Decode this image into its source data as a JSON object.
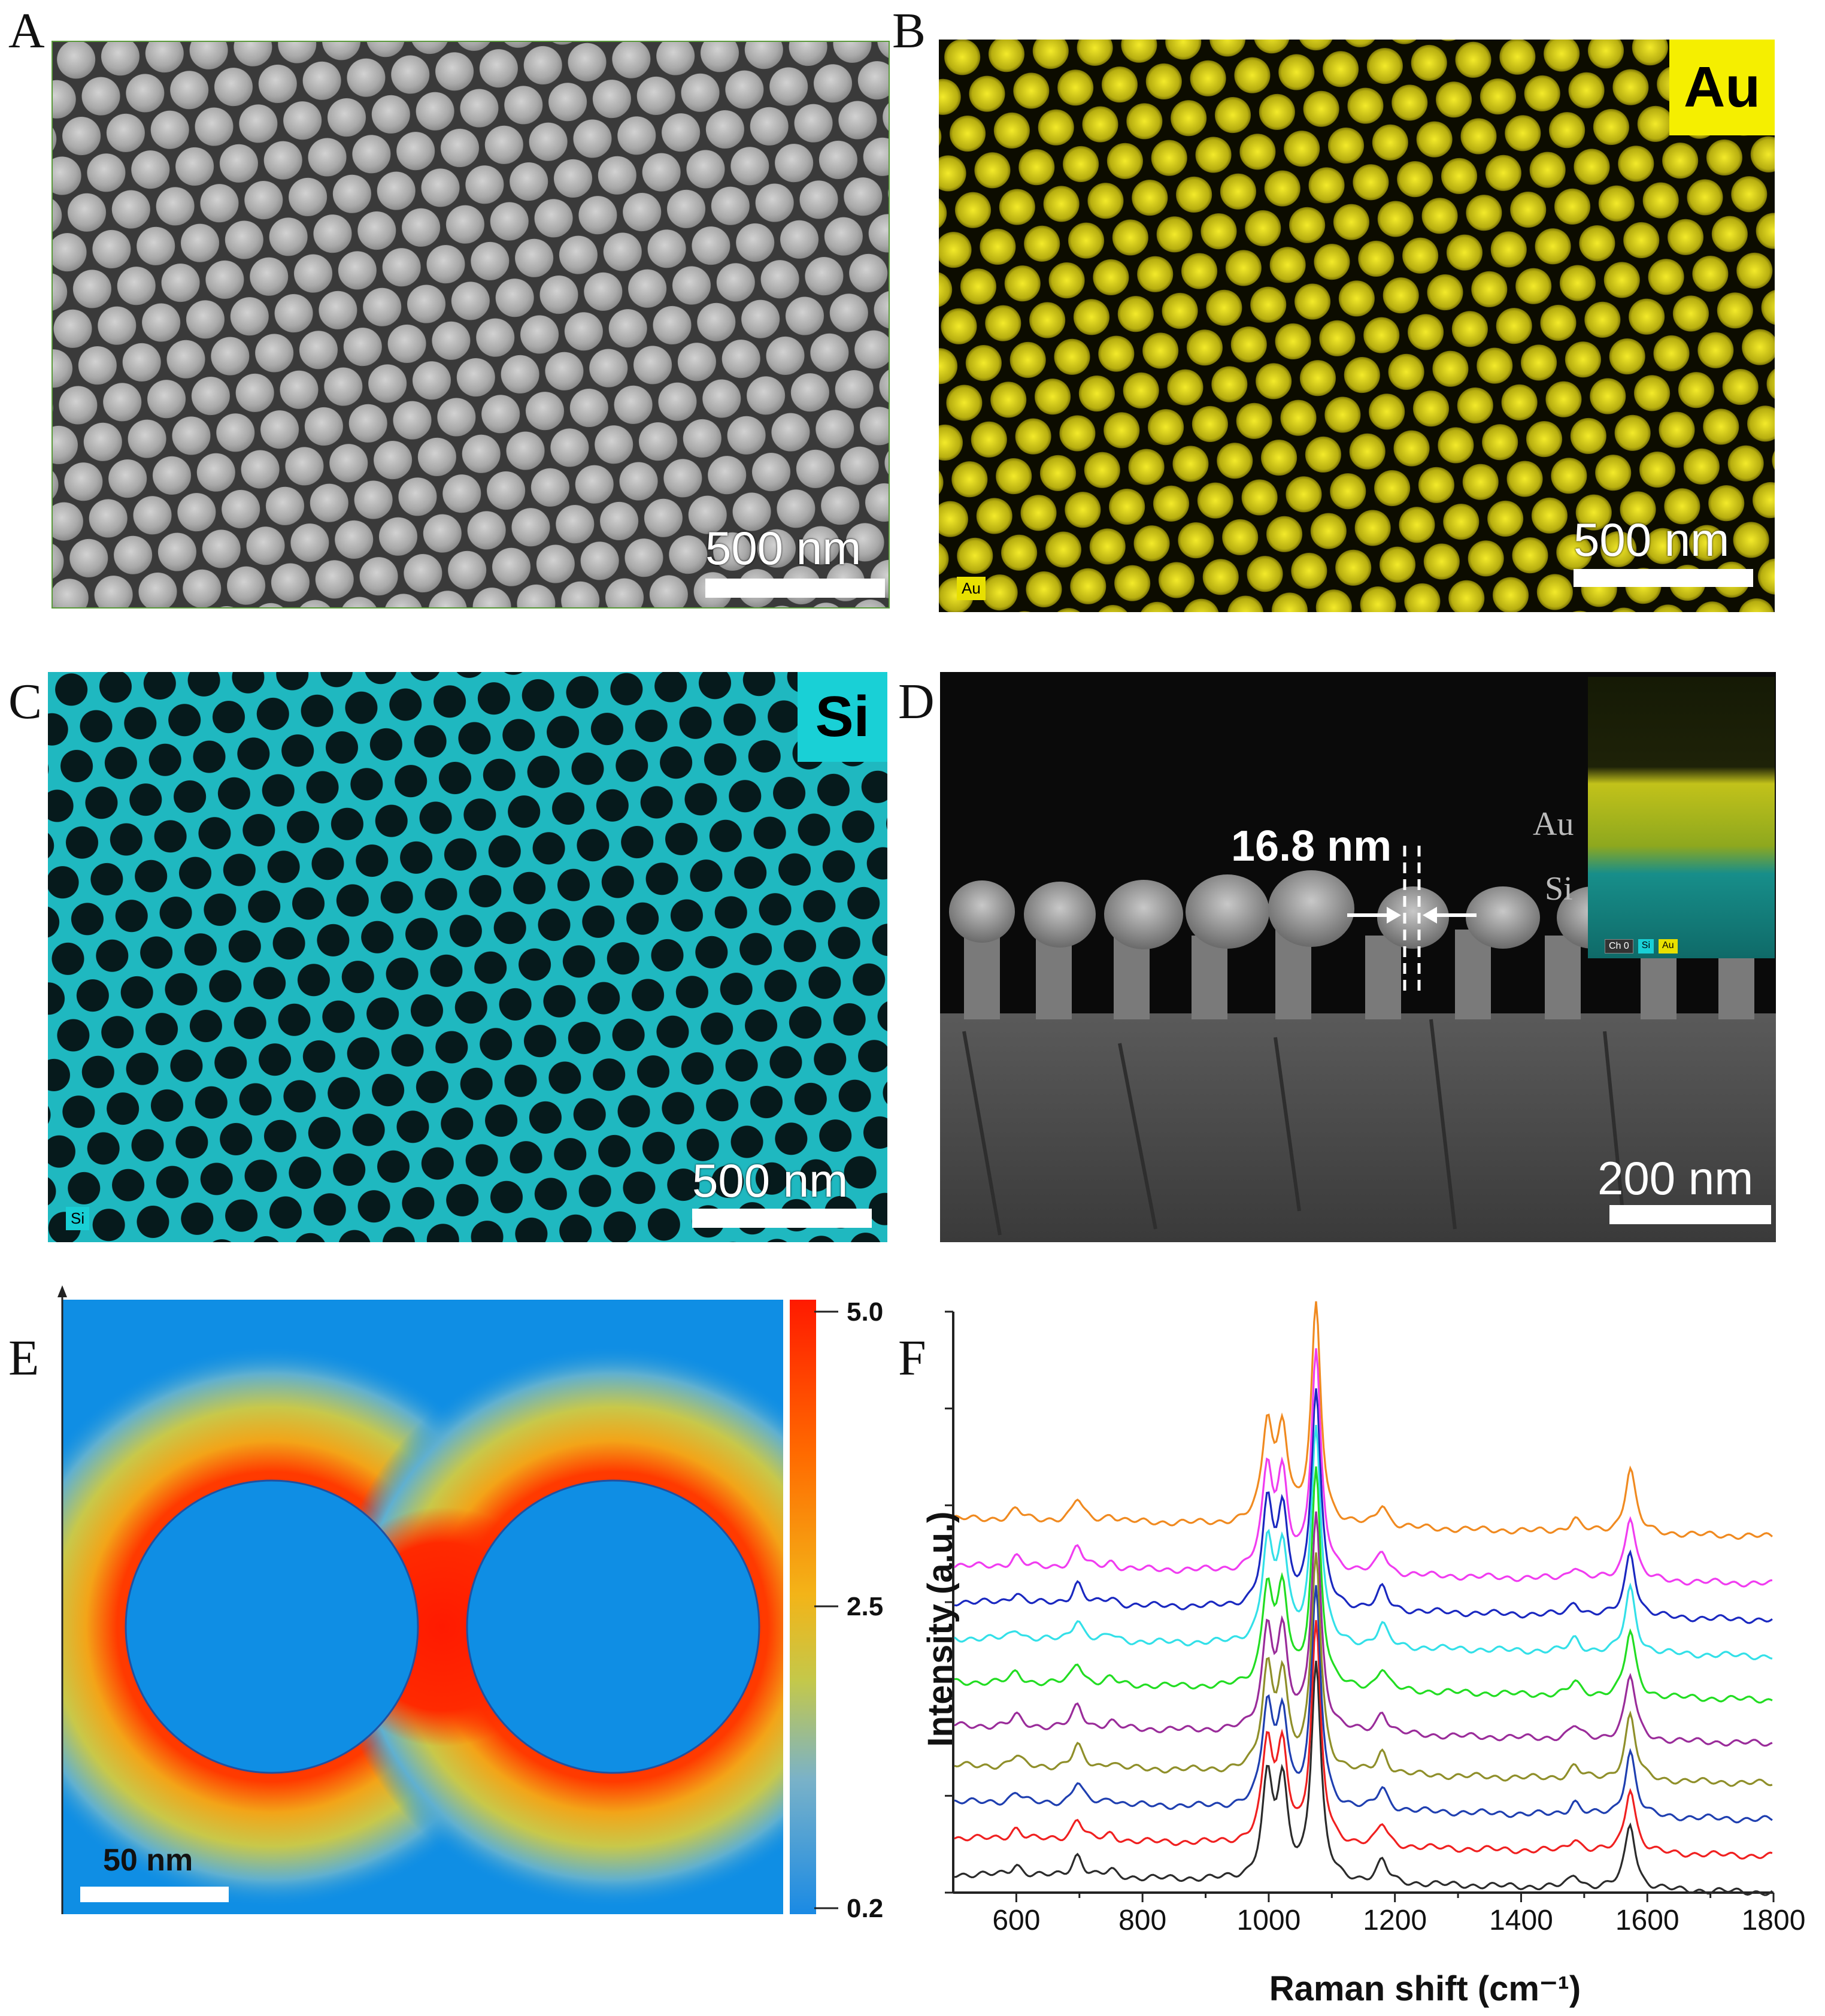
{
  "panels": {
    "A": {
      "letter": "A",
      "scale_label": "500 nm"
    },
    "B": {
      "letter": "B",
      "scale_label": "500 nm",
      "element_badge": "Au",
      "corner_tag": "Au",
      "color": "#e8e000"
    },
    "C": {
      "letter": "C",
      "scale_label": "500 nm",
      "element_badge": "Si",
      "corner_tag": "Si",
      "color": "#19d0d6"
    },
    "D": {
      "letter": "D",
      "scale_label": "200 nm",
      "gap_label": "16.8 nm",
      "inset_labels": {
        "top": "Au",
        "bottom": "Si"
      },
      "inset_legend": [
        "Ch 0",
        "Si",
        "Au"
      ]
    },
    "E": {
      "letter": "E",
      "scale_label": "50 nm",
      "colorbar_ticks": [
        "5.0",
        "2.5",
        "0.2"
      ]
    },
    "F": {
      "letter": "F"
    }
  },
  "chart_data": {
    "type": "line",
    "xlabel": "Raman shift (cm⁻¹)",
    "ylabel": "Intensity (a.u.)",
    "xlim": [
      500,
      1800
    ],
    "x_ticks": [
      600,
      800,
      1000,
      1200,
      1400,
      1600,
      1800
    ],
    "peaks": [
      {
        "x": 600,
        "rel": 0.05
      },
      {
        "x": 697,
        "rel": 0.1
      },
      {
        "x": 750,
        "rel": 0.03
      },
      {
        "x": 998,
        "rel": 0.45
      },
      {
        "x": 1022,
        "rel": 0.42
      },
      {
        "x": 1075,
        "rel": 1.0
      },
      {
        "x": 1180,
        "rel": 0.1
      },
      {
        "x": 1485,
        "rel": 0.06
      },
      {
        "x": 1573,
        "rel": 0.3
      }
    ],
    "series": [
      {
        "color": "#2b2b2b",
        "baseline": 0.05
      },
      {
        "color": "#f02020",
        "baseline": 0.15
      },
      {
        "color": "#1f3fb0",
        "baseline": 0.25
      },
      {
        "color": "#8f8f2a",
        "baseline": 0.35
      },
      {
        "color": "#9a2c9a",
        "baseline": 0.46
      },
      {
        "color": "#22dd22",
        "baseline": 0.58
      },
      {
        "color": "#33e0e8",
        "baseline": 0.7
      },
      {
        "color": "#1a28c0",
        "baseline": 0.8
      },
      {
        "color": "#f03cf0",
        "baseline": 0.9
      },
      {
        "color": "#f08a20",
        "baseline": 1.03
      }
    ]
  }
}
